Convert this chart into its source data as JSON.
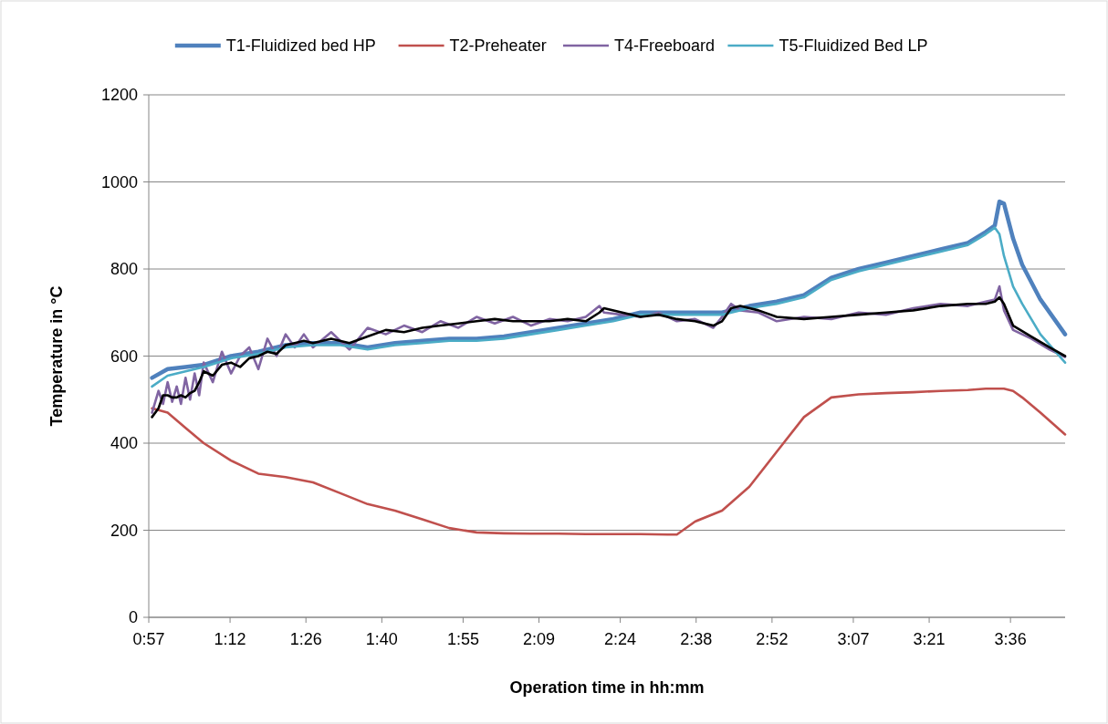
{
  "chart_data": {
    "type": "line",
    "xlabel": "Operation time in hh:mm",
    "ylabel": "Temperature in °C",
    "xlim": [
      0.95,
      3.768
    ],
    "ylim": [
      0,
      1200
    ],
    "xticks": [
      {
        "value": 0.95,
        "label": "0:57"
      },
      {
        "value": 1.2,
        "label": "1:12"
      },
      {
        "value": 1.4333,
        "label": "1:26"
      },
      {
        "value": 1.6667,
        "label": "1:40"
      },
      {
        "value": 1.9167,
        "label": "1:55"
      },
      {
        "value": 2.15,
        "label": "2:09"
      },
      {
        "value": 2.4,
        "label": "2:24"
      },
      {
        "value": 2.6333,
        "label": "2:38"
      },
      {
        "value": 2.8667,
        "label": "2:52"
      },
      {
        "value": 3.1167,
        "label": "3:07"
      },
      {
        "value": 3.35,
        "label": "3:21"
      },
      {
        "value": 3.6,
        "label": "3:36"
      }
    ],
    "yticks": [
      0,
      200,
      400,
      600,
      800,
      1000,
      1200
    ],
    "grid": "y",
    "legend": "top",
    "marker": "none",
    "line_style": "solid",
    "series": [
      {
        "name": "T1-Fluidized bed HP",
        "color": "#4f81bd",
        "x": [
          0.96,
          1.008,
          1.063,
          1.119,
          1.203,
          1.287,
          1.371,
          1.455,
          1.539,
          1.623,
          1.707,
          1.791,
          1.874,
          1.958,
          2.042,
          2.126,
          2.21,
          2.294,
          2.378,
          2.462,
          2.546,
          2.63,
          2.713,
          2.797,
          2.881,
          2.965,
          3.049,
          3.133,
          3.217,
          3.301,
          3.385,
          3.469,
          3.524,
          3.552,
          3.566,
          3.58,
          3.608,
          3.636,
          3.692,
          3.768
        ],
        "values": [
          550,
          570,
          575,
          580,
          600,
          610,
          625,
          630,
          630,
          620,
          630,
          635,
          640,
          640,
          645,
          655,
          665,
          675,
          685,
          700,
          700,
          700,
          700,
          715,
          725,
          740,
          780,
          800,
          815,
          830,
          845,
          860,
          885,
          900,
          955,
          950,
          870,
          810,
          730,
          650
        ]
      },
      {
        "name": "T2-Preheater",
        "color": "#c0504d",
        "x": [
          0.96,
          1.008,
          1.063,
          1.119,
          1.203,
          1.287,
          1.371,
          1.455,
          1.539,
          1.623,
          1.707,
          1.791,
          1.874,
          1.958,
          2.042,
          2.126,
          2.21,
          2.294,
          2.378,
          2.462,
          2.546,
          2.574,
          2.63,
          2.713,
          2.797,
          2.881,
          2.965,
          3.049,
          3.133,
          3.217,
          3.301,
          3.385,
          3.469,
          3.524,
          3.58,
          3.608,
          3.636,
          3.692,
          3.768
        ],
        "values": [
          480,
          470,
          435,
          400,
          360,
          330,
          322,
          310,
          285,
          260,
          245,
          225,
          205,
          195,
          193,
          192,
          192,
          191,
          191,
          191,
          190,
          190,
          220,
          245,
          300,
          380,
          460,
          505,
          512,
          515,
          517,
          520,
          522,
          525,
          525,
          520,
          505,
          470,
          420
        ]
      },
      {
        "name": "T4-Freeboard",
        "color": "#8064a2",
        "x": [
          0.96,
          0.98,
          0.994,
          1.008,
          1.022,
          1.036,
          1.049,
          1.063,
          1.077,
          1.091,
          1.105,
          1.119,
          1.147,
          1.175,
          1.203,
          1.231,
          1.259,
          1.287,
          1.315,
          1.343,
          1.371,
          1.399,
          1.427,
          1.455,
          1.511,
          1.567,
          1.623,
          1.679,
          1.735,
          1.791,
          1.847,
          1.902,
          1.958,
          2.014,
          2.07,
          2.126,
          2.182,
          2.238,
          2.294,
          2.336,
          2.35,
          2.406,
          2.462,
          2.518,
          2.574,
          2.63,
          2.686,
          2.713,
          2.741,
          2.769,
          2.825,
          2.881,
          2.965,
          3.049,
          3.133,
          3.217,
          3.301,
          3.385,
          3.469,
          3.524,
          3.552,
          3.566,
          3.58,
          3.608,
          3.664,
          3.72,
          3.768
        ],
        "values": [
          470,
          520,
          490,
          540,
          495,
          530,
          490,
          550,
          500,
          560,
          510,
          585,
          540,
          610,
          560,
          600,
          620,
          570,
          640,
          600,
          650,
          620,
          650,
          620,
          655,
          615,
          665,
          650,
          670,
          655,
          680,
          665,
          690,
          675,
          690,
          670,
          685,
          680,
          690,
          715,
          700,
          695,
          690,
          700,
          680,
          685,
          665,
          690,
          720,
          705,
          700,
          680,
          690,
          685,
          700,
          695,
          710,
          720,
          715,
          725,
          730,
          760,
          705,
          660,
          640,
          615,
          598
        ]
      },
      {
        "name": "T5-Fluidized Bed LP",
        "color": "#4bacc6",
        "x": [
          0.96,
          1.008,
          1.063,
          1.119,
          1.203,
          1.287,
          1.371,
          1.455,
          1.539,
          1.623,
          1.707,
          1.791,
          1.874,
          1.958,
          2.042,
          2.126,
          2.21,
          2.294,
          2.378,
          2.462,
          2.546,
          2.63,
          2.713,
          2.797,
          2.881,
          2.965,
          3.049,
          3.133,
          3.217,
          3.301,
          3.385,
          3.469,
          3.524,
          3.552,
          3.566,
          3.58,
          3.608,
          3.636,
          3.692,
          3.768
        ],
        "values": [
          530,
          555,
          565,
          575,
          595,
          605,
          620,
          625,
          625,
          615,
          625,
          630,
          635,
          635,
          640,
          650,
          660,
          670,
          680,
          695,
          695,
          695,
          695,
          710,
          720,
          735,
          775,
          795,
          810,
          825,
          840,
          855,
          880,
          895,
          880,
          830,
          760,
          720,
          650,
          585
        ]
      },
      {
        "color": "#000000",
        "x": [
          0.96,
          0.98,
          0.994,
          1.008,
          1.022,
          1.036,
          1.049,
          1.063,
          1.077,
          1.091,
          1.105,
          1.119,
          1.147,
          1.175,
          1.203,
          1.231,
          1.259,
          1.287,
          1.315,
          1.343,
          1.371,
          1.399,
          1.427,
          1.455,
          1.511,
          1.567,
          1.623,
          1.679,
          1.735,
          1.791,
          1.847,
          1.902,
          1.958,
          2.014,
          2.07,
          2.126,
          2.182,
          2.238,
          2.294,
          2.336,
          2.35,
          2.406,
          2.462,
          2.518,
          2.574,
          2.63,
          2.686,
          2.713,
          2.741,
          2.769,
          2.825,
          2.881,
          2.965,
          3.049,
          3.133,
          3.217,
          3.301,
          3.385,
          3.469,
          3.524,
          3.552,
          3.566,
          3.58,
          3.608,
          3.664,
          3.72,
          3.768
        ],
        "values": [
          460,
          480,
          510,
          510,
          505,
          505,
          510,
          505,
          515,
          520,
          540,
          565,
          555,
          580,
          585,
          575,
          595,
          600,
          610,
          605,
          625,
          630,
          635,
          630,
          640,
          630,
          645,
          660,
          655,
          665,
          670,
          675,
          680,
          685,
          680,
          680,
          680,
          685,
          680,
          700,
          710,
          700,
          690,
          695,
          685,
          680,
          670,
          680,
          710,
          715,
          705,
          690,
          685,
          690,
          695,
          700,
          705,
          715,
          720,
          720,
          725,
          735,
          720,
          670,
          645,
          620,
          600
        ]
      }
    ]
  }
}
